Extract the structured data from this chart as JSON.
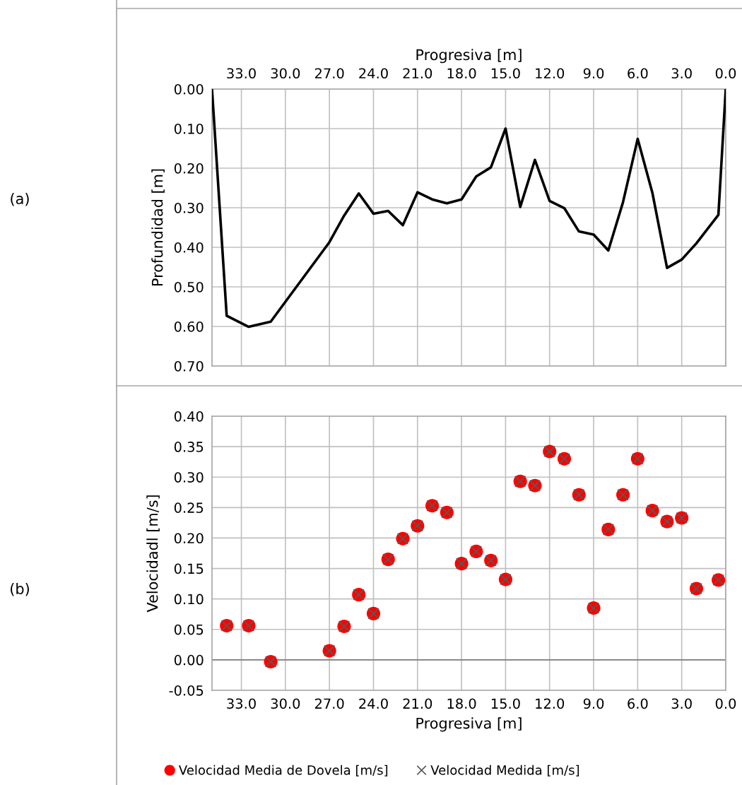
{
  "chart_data": [
    {
      "type": "line",
      "xlabel": "Progresiva [m]",
      "ylabel": "Profundidad [m]",
      "xlim": [
        35,
        0
      ],
      "xticks": [
        {
          "value": 33,
          "label": "33.0"
        },
        {
          "value": 30,
          "label": "30.0"
        },
        {
          "value": 27,
          "label": "27.0"
        },
        {
          "value": 24,
          "label": "24.0"
        },
        {
          "value": 21,
          "label": "21.0"
        },
        {
          "value": 18,
          "label": "18.0"
        },
        {
          "value": 15,
          "label": "15.0"
        },
        {
          "value": 12,
          "label": "12.0"
        },
        {
          "value": 9,
          "label": "9.0"
        },
        {
          "value": 6,
          "label": "6.0"
        },
        {
          "value": 3,
          "label": "3.0"
        },
        {
          "value": 0,
          "label": "0.0"
        }
      ],
      "ylim": [
        0.7,
        0
      ],
      "yticks": [
        {
          "value": 0,
          "label": "0.00"
        },
        {
          "value": 0.1,
          "label": "0.10"
        },
        {
          "value": 0.2,
          "label": "0.20"
        },
        {
          "value": 0.3,
          "label": "0.30"
        },
        {
          "value": 0.4,
          "label": "0.40"
        },
        {
          "value": 0.5,
          "label": "0.50"
        },
        {
          "value": 0.6,
          "label": "0.60"
        },
        {
          "value": 0.7,
          "label": "0.70"
        }
      ],
      "grid": true,
      "legend": false,
      "marker": "none",
      "line_style": "solid",
      "annotations": [
        "(a)"
      ],
      "series": [
        {
          "color": "#000000",
          "x": [
            35,
            34,
            32.5,
            31,
            27,
            26,
            25,
            24,
            23,
            22,
            21,
            20,
            19,
            18,
            17,
            16,
            15,
            14,
            13,
            12,
            11,
            10,
            9,
            8,
            7,
            6,
            5,
            4,
            3,
            2,
            0.5,
            0
          ],
          "values": [
            0.0,
            0.573,
            0.601,
            0.588,
            0.387,
            0.32,
            0.264,
            0.315,
            0.308,
            0.344,
            0.261,
            0.279,
            0.289,
            0.279,
            0.221,
            0.198,
            0.1,
            0.298,
            0.179,
            0.283,
            0.301,
            0.36,
            0.368,
            0.408,
            0.286,
            0.126,
            0.262,
            0.452,
            0.431,
            0.39,
            0.318,
            0.0
          ]
        }
      ]
    },
    {
      "type": "scatter",
      "xlabel": "Progresiva [m]",
      "ylabel": "Velocidadl [m/s]",
      "xlim": [
        35,
        0
      ],
      "xticks": [
        {
          "value": 33,
          "label": "33.0"
        },
        {
          "value": 30,
          "label": "30.0"
        },
        {
          "value": 27,
          "label": "27.0"
        },
        {
          "value": 24,
          "label": "24.0"
        },
        {
          "value": 21,
          "label": "21.0"
        },
        {
          "value": 18,
          "label": "18.0"
        },
        {
          "value": 15,
          "label": "15.0"
        },
        {
          "value": 12,
          "label": "12.0"
        },
        {
          "value": 9,
          "label": "9.0"
        },
        {
          "value": 6,
          "label": "6.0"
        },
        {
          "value": 3,
          "label": "3.0"
        },
        {
          "value": 0,
          "label": "0.0"
        }
      ],
      "ylim": [
        -0.05,
        0.4
      ],
      "yticks": [
        {
          "value": -0.05,
          "label": "-0.05"
        },
        {
          "value": 0,
          "label": "0.00"
        },
        {
          "value": 0.05,
          "label": "0.05"
        },
        {
          "value": 0.1,
          "label": "0.10"
        },
        {
          "value": 0.15,
          "label": "0.15"
        },
        {
          "value": 0.2,
          "label": "0.20"
        },
        {
          "value": 0.25,
          "label": "0.25"
        },
        {
          "value": 0.3,
          "label": "0.30"
        },
        {
          "value": 0.35,
          "label": "0.35"
        },
        {
          "value": 0.4,
          "label": "0.40"
        }
      ],
      "grid": true,
      "legend": "bottom",
      "annotations": [
        "(b)"
      ],
      "ref_lines": [
        {
          "axis": "y",
          "value": 0,
          "color": "#808080"
        }
      ],
      "series": [
        {
          "name": "Velocidad Media de Dovela [m/s]",
          "color": "#ff0000",
          "marker": "circle",
          "x": [
            34,
            32.5,
            31,
            27,
            26,
            25,
            24,
            23,
            22,
            21,
            20,
            19,
            18,
            17,
            16,
            15,
            14,
            13,
            12,
            11,
            10,
            9,
            8,
            7,
            6,
            5,
            4,
            3,
            2,
            0.5
          ],
          "values": [
            0.056,
            0.056,
            -0.003,
            0.015,
            0.055,
            0.107,
            0.076,
            0.165,
            0.199,
            0.22,
            0.253,
            0.242,
            0.158,
            0.178,
            0.163,
            0.132,
            0.293,
            0.286,
            0.342,
            0.33,
            0.271,
            0.085,
            0.214,
            0.271,
            0.33,
            0.245,
            0.227,
            0.233,
            0.117,
            0.131
          ]
        },
        {
          "name": "Velocidad Medida [m/s]",
          "color": "#595959",
          "marker": "cross",
          "x": [
            34,
            32.5,
            31,
            27,
            26,
            25,
            24,
            23,
            22,
            21,
            20,
            19,
            18,
            17,
            16,
            15,
            14,
            13,
            12,
            11,
            10,
            9,
            8,
            7,
            6,
            5,
            4,
            3,
            2,
            0.5
          ],
          "values": [
            0.056,
            0.056,
            -0.003,
            0.015,
            0.055,
            0.107,
            0.076,
            0.165,
            0.199,
            0.22,
            0.253,
            0.242,
            0.158,
            0.178,
            0.163,
            0.132,
            0.293,
            0.286,
            0.342,
            0.33,
            0.271,
            0.085,
            0.214,
            0.271,
            0.33,
            0.245,
            0.227,
            0.233,
            0.117,
            0.131
          ]
        }
      ]
    }
  ]
}
